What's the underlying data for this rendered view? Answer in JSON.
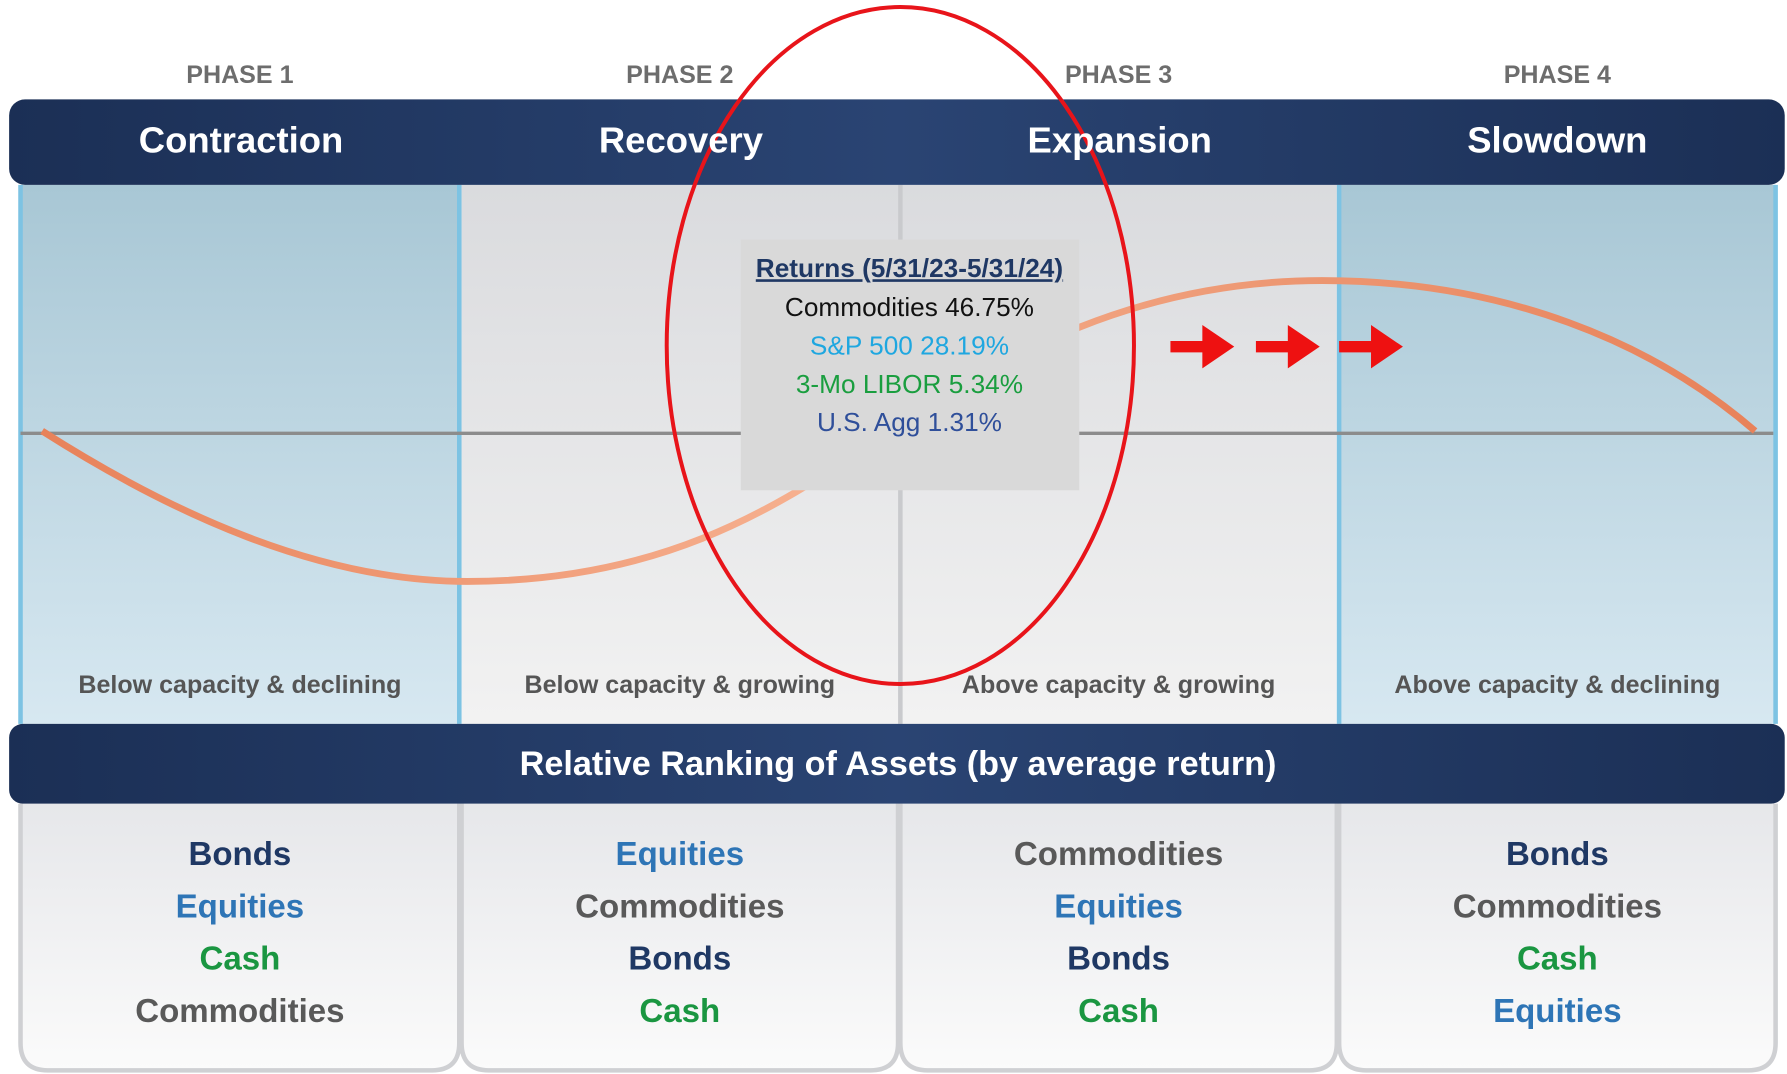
{
  "phases": [
    {
      "label": "PHASE 1",
      "name": "Contraction",
      "condition": "Below capacity & declining",
      "tone": "blue",
      "ranking": [
        {
          "text": "Bonds",
          "color": "#1f3864"
        },
        {
          "text": "Equities",
          "color": "#2e75b6"
        },
        {
          "text": "Cash",
          "color": "#1a9641"
        },
        {
          "text": "Commodities",
          "color": "#595959"
        }
      ]
    },
    {
      "label": "PHASE 2",
      "name": "Recovery",
      "condition": "Below capacity & growing",
      "tone": "gray",
      "ranking": [
        {
          "text": "Equities",
          "color": "#2e75b6"
        },
        {
          "text": "Commodities",
          "color": "#595959"
        },
        {
          "text": "Bonds",
          "color": "#1f3864"
        },
        {
          "text": "Cash",
          "color": "#1a9641"
        }
      ]
    },
    {
      "label": "PHASE 3",
      "name": "Expansion",
      "condition": "Above capacity & growing",
      "tone": "gray",
      "ranking": [
        {
          "text": "Commodities",
          "color": "#595959"
        },
        {
          "text": "Equities",
          "color": "#2e75b6"
        },
        {
          "text": "Bonds",
          "color": "#1f3864"
        },
        {
          "text": "Cash",
          "color": "#1a9641"
        }
      ]
    },
    {
      "label": "PHASE 4",
      "name": "Slowdown",
      "condition": "Above capacity & declining",
      "tone": "blue",
      "ranking": [
        {
          "text": "Bonds",
          "color": "#1f3864"
        },
        {
          "text": "Commodities",
          "color": "#595959"
        },
        {
          "text": "Cash",
          "color": "#1a9641"
        },
        {
          "text": "Equities",
          "color": "#2e75b6"
        }
      ]
    }
  ],
  "ranking_title": "Relative Ranking of Assets (by average return)",
  "returns": {
    "title": "Returns (5/31/23-5/31/24)",
    "items": [
      {
        "text": "Commodities 46.75%",
        "color": "#111111"
      },
      {
        "text": "S&P 500 28.19%",
        "color": "#1fa7e0"
      },
      {
        "text": "3-Mo LIBOR 5.34%",
        "color": "#1a9e3f"
      },
      {
        "text": "U.S. Agg 1.31%",
        "color": "#2f4f9a"
      }
    ]
  }
}
